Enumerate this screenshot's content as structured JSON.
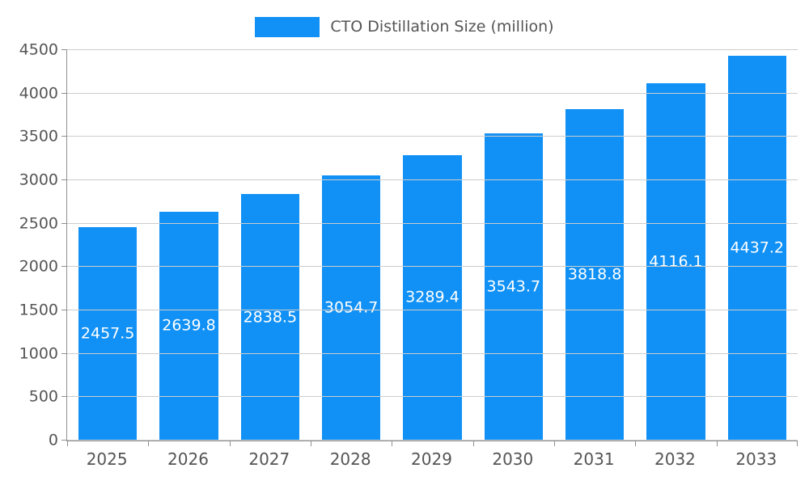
{
  "chart_data": {
    "type": "bar",
    "title": "CTO Distillation Size (million)",
    "series_name": "CTO Distillation Size (million)",
    "categories": [
      "2025",
      "2026",
      "2027",
      "2028",
      "2029",
      "2030",
      "2031",
      "2032",
      "2033"
    ],
    "values": [
      2457.5,
      2639.8,
      2838.5,
      3054.7,
      3289.4,
      3543.7,
      3818.8,
      4116.1,
      4437.2
    ],
    "xlabel": "",
    "ylabel": "",
    "ylim": [
      0,
      4500
    ],
    "ytick_step": 500,
    "grid": true,
    "legend_position": "top",
    "bar_color": "#1191f5",
    "value_label_color": "#ffffff",
    "axis_text_color": "#555555",
    "grid_color": "#cccccc",
    "axis_line_color": "#8f8f8f"
  }
}
